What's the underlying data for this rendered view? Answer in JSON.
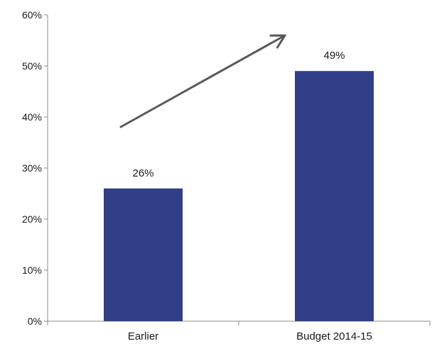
{
  "chart_data": {
    "type": "bar",
    "categories": [
      "Earlier",
      "Budget 2014-15"
    ],
    "values": [
      26,
      49
    ],
    "data_labels": [
      "26%",
      "49%"
    ],
    "ylim": [
      0,
      60
    ],
    "yticks": [
      0,
      10,
      20,
      30,
      40,
      50,
      60
    ],
    "ytick_labels": [
      "0%",
      "10%",
      "20%",
      "30%",
      "40%",
      "50%",
      "60%"
    ],
    "title": "",
    "xlabel": "",
    "ylabel": "",
    "grid": false,
    "legend": "none",
    "annotations": [
      {
        "type": "arrow",
        "direction": "up-right",
        "color": "#595959"
      }
    ],
    "bar_color": "#303f87"
  }
}
